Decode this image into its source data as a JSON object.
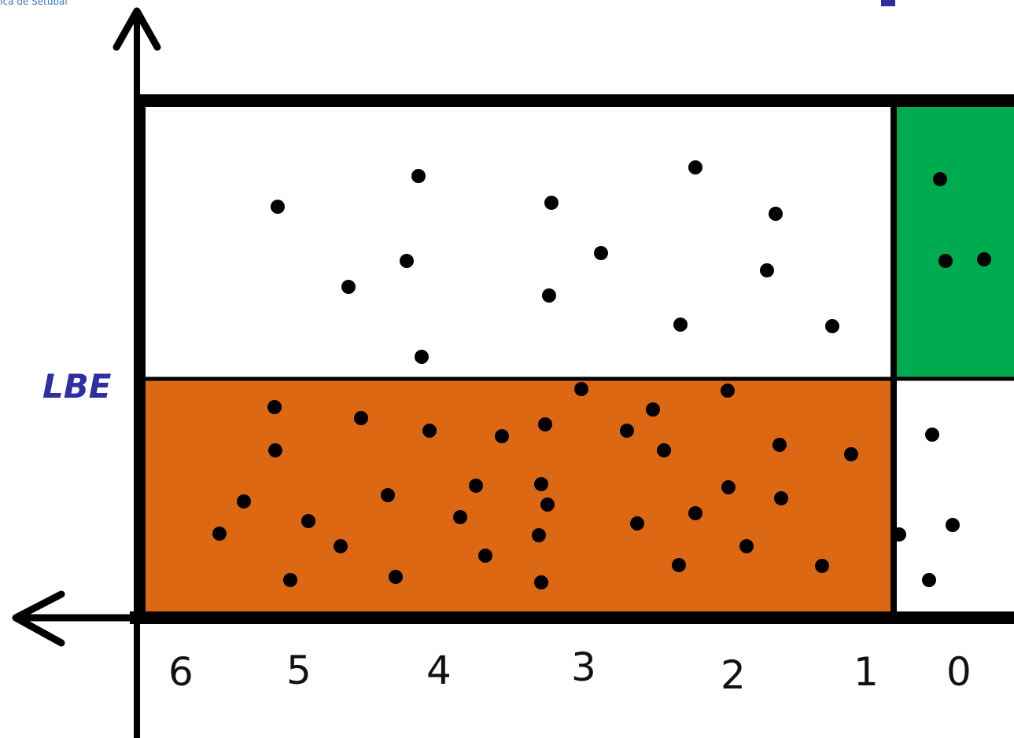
{
  "header": {
    "clipped_text": "Ica de Setúbal"
  },
  "labels": {
    "lbe": "LBE"
  },
  "x_axis": {
    "ticks": [
      "6",
      "5",
      "4",
      "3",
      "2",
      "1",
      "0"
    ]
  },
  "colors": {
    "orange_region": "#dd6814",
    "green_region": "#00ab4f",
    "lbe_text": "#2e2fa0",
    "header_text": "#3b78c6",
    "header_mark": "#2e2fa0",
    "lines": "#000000",
    "dots": "#000000"
  }
}
